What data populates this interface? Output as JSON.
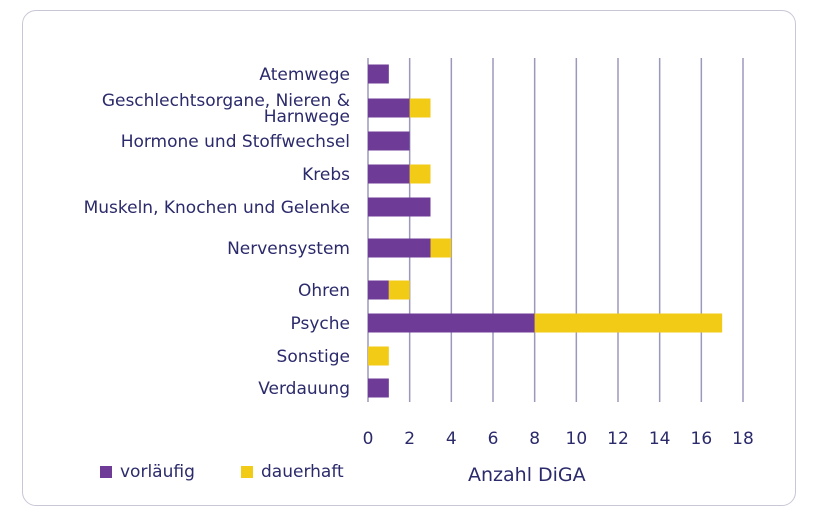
{
  "chart_data": {
    "type": "bar",
    "orientation": "horizontal",
    "stacked": true,
    "categories": [
      "Atemwege",
      "Geschlechtsorgane, Nieren & Harnwege",
      "Hormone und Stoffwechsel",
      "Krebs",
      "Muskeln, Knochen und Gelenke",
      "Nervensystem",
      "Ohren",
      "Psyche",
      "Sonstige",
      "Verdauung"
    ],
    "series": [
      {
        "name": "vorläufig",
        "color": "#6e3b97",
        "values": [
          1,
          2,
          2,
          2,
          3,
          3,
          1,
          8,
          0,
          1
        ]
      },
      {
        "name": "dauerhaft",
        "color": "#f2cb17",
        "values": [
          0,
          1,
          0,
          1,
          0,
          1,
          1,
          9,
          1,
          0
        ]
      }
    ],
    "xlabel": "Anzahl DiGA",
    "xlim": [
      0,
      18
    ],
    "xticks": [
      0,
      2,
      4,
      6,
      8,
      10,
      12,
      14,
      16,
      18
    ],
    "grid": "vertical",
    "legend": "bottom-left"
  }
}
